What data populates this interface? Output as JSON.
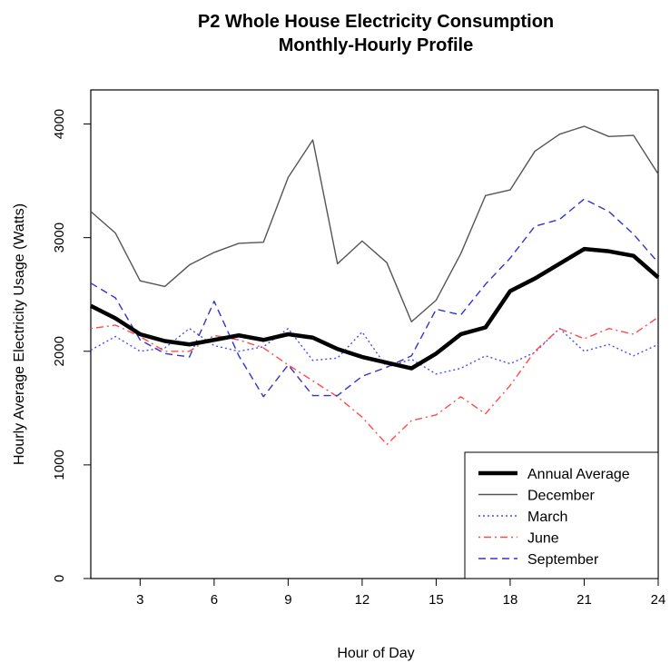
{
  "chart_data": {
    "type": "line",
    "title": "P2 Whole House Electricity Consumption",
    "subtitle": "Monthly-Hourly Profile",
    "xlabel": "Hour of Day",
    "ylabel": "Hourly Average Electricity Usage (Watts)",
    "xlim": [
      1,
      24
    ],
    "ylim": [
      0,
      4300
    ],
    "x_ticks": [
      3,
      6,
      9,
      12,
      15,
      18,
      21,
      24
    ],
    "y_ticks": [
      0,
      1000,
      2000,
      3000,
      4000
    ],
    "grid": false,
    "legend_position": "bottom-right",
    "x": [
      1,
      2,
      3,
      4,
      5,
      6,
      7,
      8,
      9,
      10,
      11,
      12,
      13,
      14,
      15,
      16,
      17,
      18,
      19,
      20,
      21,
      22,
      23,
      24
    ],
    "series": [
      {
        "name": "Annual Average",
        "color": "#000000",
        "style": "solid-thick",
        "values": [
          2400,
          2290,
          2150,
          2090,
          2060,
          2100,
          2140,
          2100,
          2150,
          2120,
          2020,
          1950,
          1900,
          1850,
          1980,
          2150,
          2210,
          2530,
          2640,
          2770,
          2900,
          2880,
          2840,
          2650
        ]
      },
      {
        "name": "December",
        "color": "#555555",
        "style": "solid",
        "values": [
          3230,
          3040,
          2620,
          2570,
          2760,
          2870,
          2950,
          2960,
          3530,
          3860,
          2770,
          2970,
          2780,
          2260,
          2450,
          2860,
          3370,
          3420,
          3760,
          3910,
          3980,
          3890,
          3900,
          3560
        ]
      },
      {
        "name": "March",
        "color": "#4a4aff",
        "style": "dotted",
        "values": [
          2010,
          2130,
          2000,
          2030,
          2200,
          2050,
          2000,
          2040,
          2200,
          1920,
          1940,
          2170,
          1860,
          1930,
          1800,
          1850,
          1960,
          1890,
          1990,
          2200,
          2000,
          2060,
          1960,
          2060
        ]
      },
      {
        "name": "June",
        "color": "#ff4a4a",
        "style": "dotdash",
        "values": [
          2200,
          2230,
          2130,
          2000,
          2000,
          2140,
          2100,
          2030,
          1880,
          1740,
          1600,
          1420,
          1180,
          1390,
          1440,
          1600,
          1450,
          1700,
          2000,
          2200,
          2110,
          2200,
          2150,
          2300
        ]
      },
      {
        "name": "September",
        "color": "#3333cc",
        "style": "dashed",
        "values": [
          2600,
          2470,
          2100,
          1980,
          1950,
          2440,
          1960,
          1600,
          1880,
          1610,
          1610,
          1780,
          1860,
          1960,
          2370,
          2320,
          2590,
          2820,
          3100,
          3160,
          3340,
          3230,
          3030,
          2780
        ]
      }
    ]
  }
}
